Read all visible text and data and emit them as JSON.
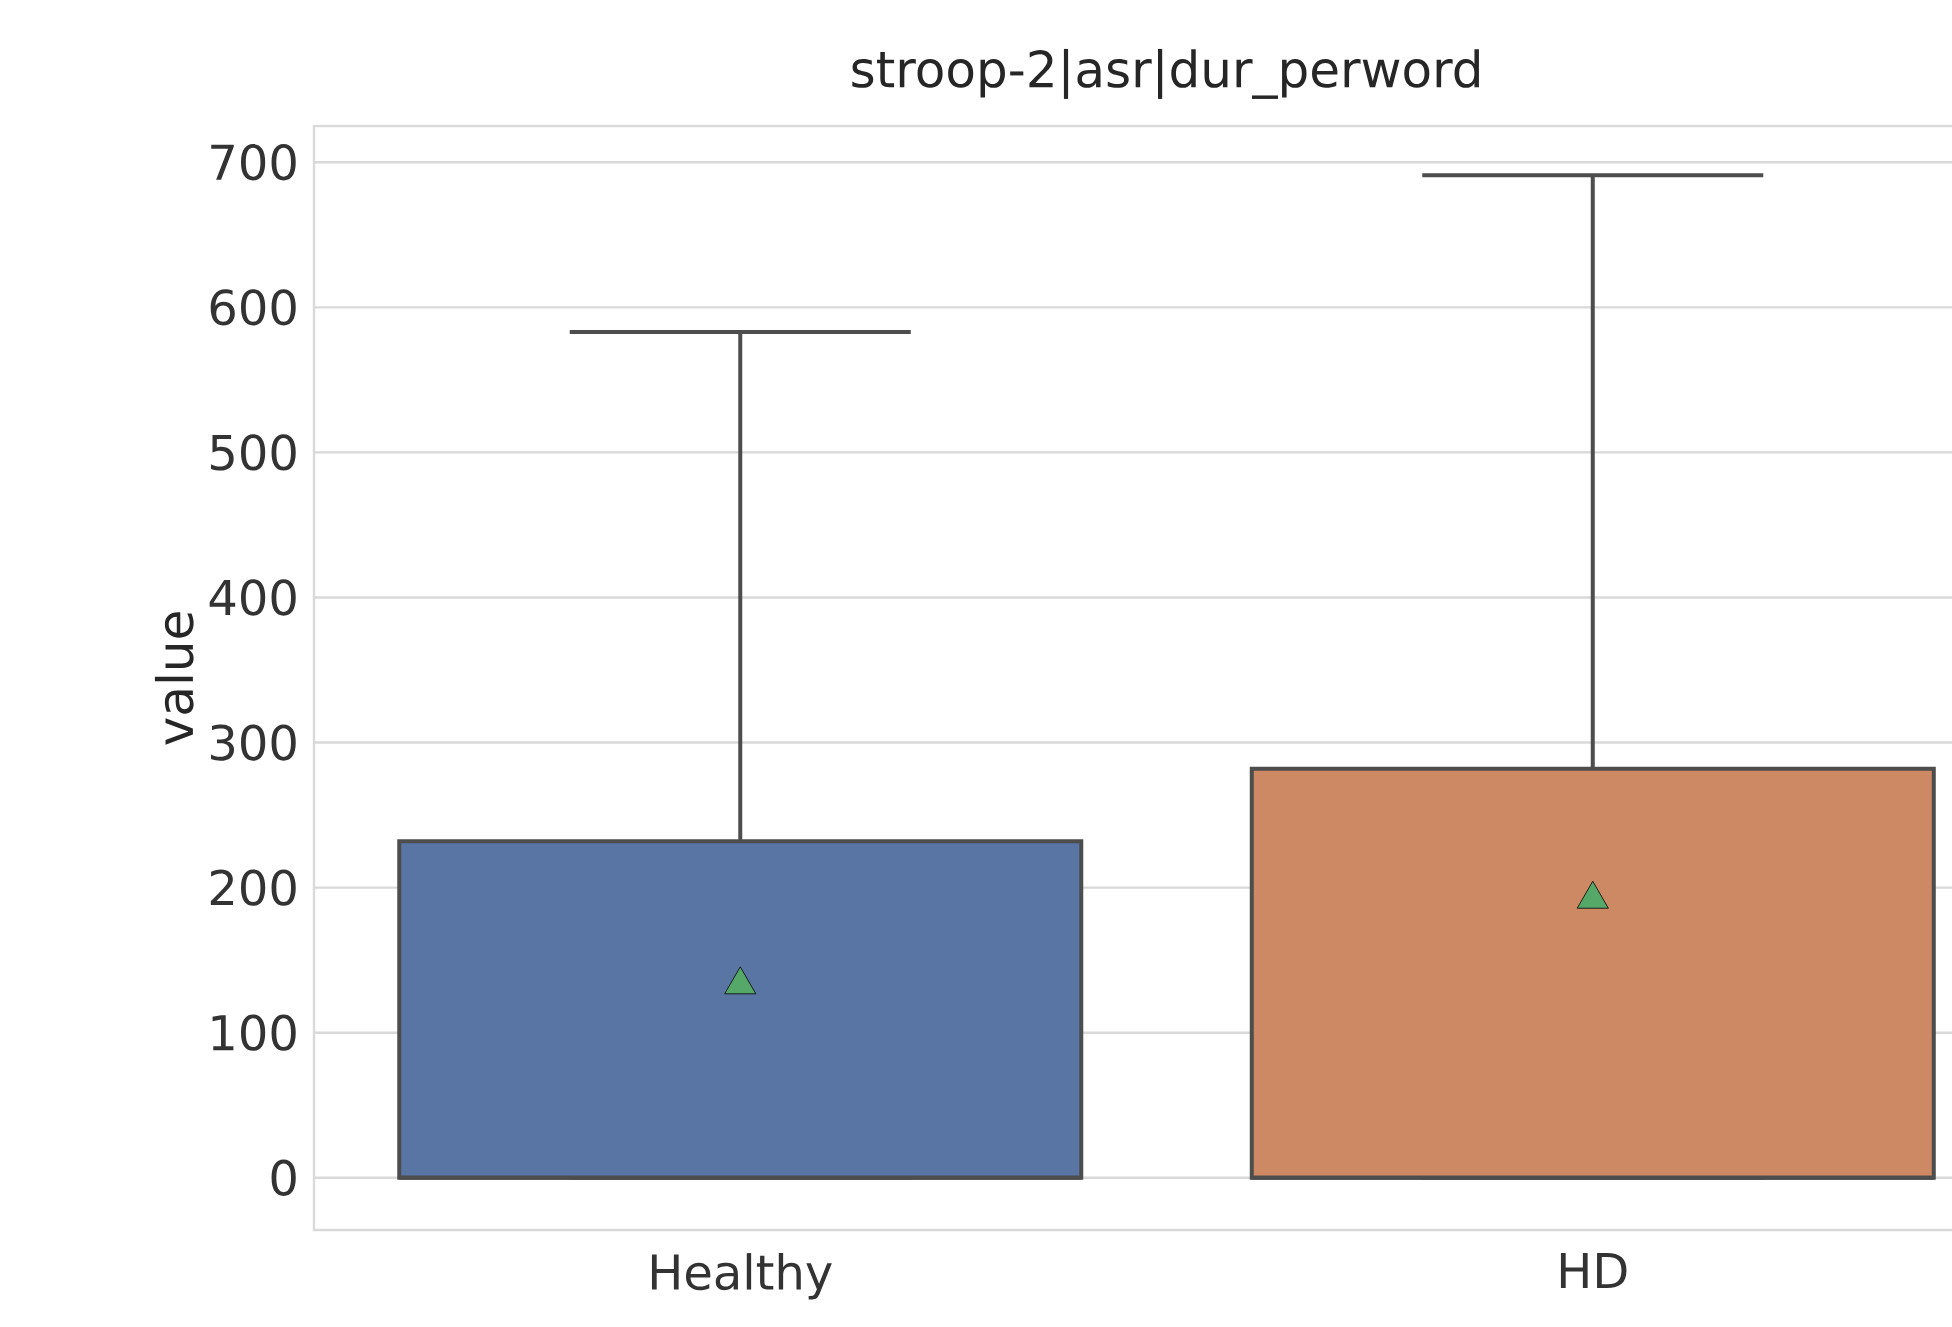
{
  "chart_data": {
    "type": "box",
    "title": "stroop-2|asr|dur_perword",
    "ylabel": "value",
    "categories": [
      "Healthy",
      "HD"
    ],
    "boxes": [
      {
        "low": 0,
        "q1": 0,
        "median": 0,
        "q3": 232,
        "high": 583,
        "mean": 133
      },
      {
        "low": 0,
        "q1": 0,
        "median": 0,
        "q3": 282,
        "high": 691,
        "mean": 192
      }
    ],
    "colors": [
      "#5875a4",
      "#cc8963"
    ],
    "ylim": [
      -36,
      725
    ],
    "yticks": [
      0,
      100,
      200,
      300,
      400,
      500,
      600,
      700
    ],
    "grid": "y"
  }
}
